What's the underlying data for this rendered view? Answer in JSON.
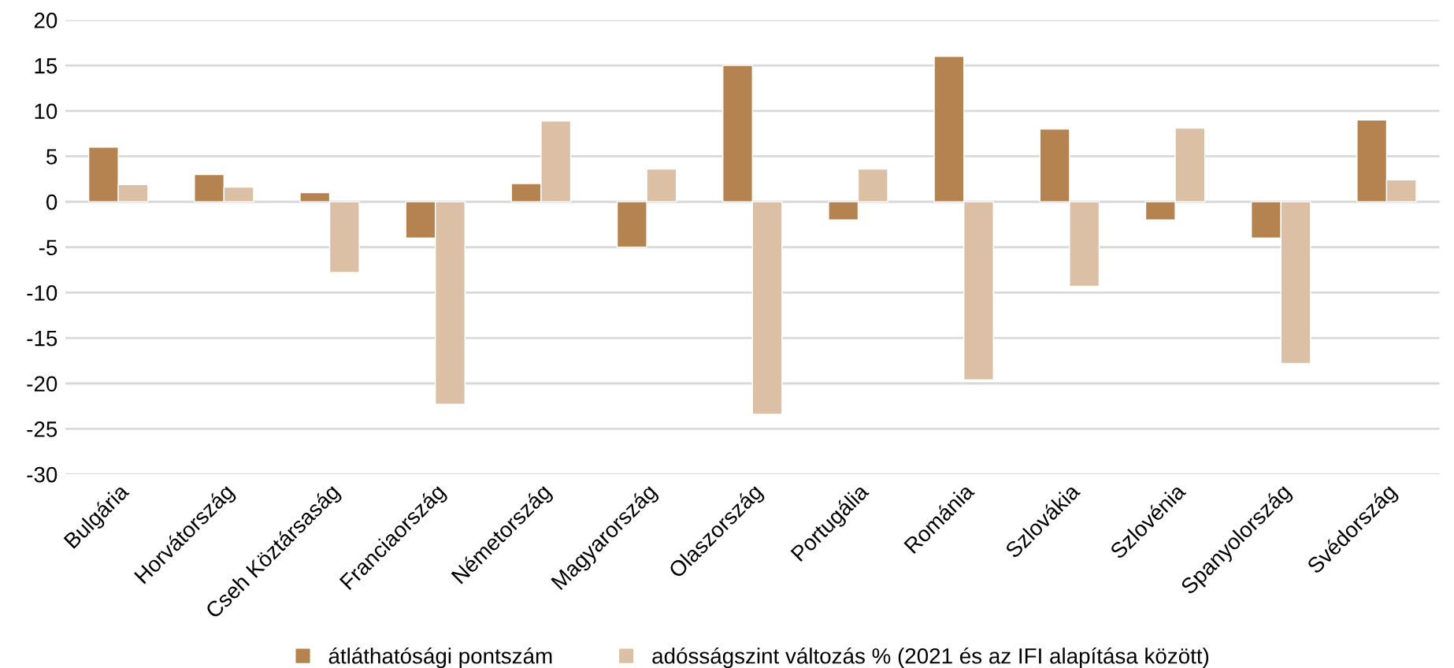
{
  "chart_data": {
    "type": "bar",
    "categories": [
      "Bulgária",
      "Horvátország",
      "Cseh Köztársaság",
      "Franciaország",
      "Németország",
      "Magyarország",
      "Olaszország",
      "Portugália",
      "Románia",
      "Szlovákia",
      "Szlovénia",
      "Spanyolország",
      "Svédország"
    ],
    "series": [
      {
        "name": "átláthatósági pontszám",
        "color": "#b5834f",
        "values": [
          6,
          3,
          1,
          -4,
          2,
          -5,
          15,
          -2,
          16,
          8,
          -2,
          -4,
          9
        ]
      },
      {
        "name": "adósságszint változás % (2021 és az IFI alapítása között)",
        "color": "#dbc0a5",
        "values": [
          1.9,
          1.6,
          -7.8,
          -22.3,
          8.9,
          3.6,
          -23.4,
          3.6,
          -19.6,
          -9.3,
          8.1,
          -17.8,
          2.4
        ]
      }
    ],
    "ylim": [
      -30,
      20
    ],
    "yticks": [
      -30,
      -25,
      -20,
      -15,
      -10,
      -5,
      0,
      5,
      10,
      15,
      20
    ],
    "grid": "y",
    "legend": "bottom"
  }
}
